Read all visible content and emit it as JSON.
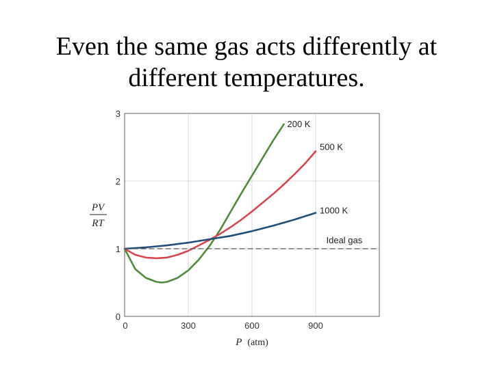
{
  "slide": {
    "title_line1": "Even the same gas acts differently at",
    "title_line2": "different temperatures."
  },
  "chart_data": {
    "type": "line",
    "xlabel_symbol": "P",
    "xlabel_unit": "(atm)",
    "ylabel_top": "PV",
    "ylabel_bottom": "RT",
    "xlim": [
      0,
      1200
    ],
    "ylim": [
      0,
      3
    ],
    "xticks": [
      "0",
      "300",
      "600",
      "900"
    ],
    "yticks": [
      "0",
      "1",
      "2",
      "3"
    ],
    "grid": true,
    "series": [
      {
        "name": "200 K",
        "color": "#4f8a3a",
        "x": [
          0,
          50,
          100,
          150,
          175,
          200,
          250,
          300,
          350,
          400,
          450,
          500,
          550,
          600,
          650,
          700,
          750
        ],
        "y": [
          1.0,
          0.7,
          0.57,
          0.51,
          0.5,
          0.51,
          0.57,
          0.68,
          0.84,
          1.04,
          1.28,
          1.55,
          1.82,
          2.08,
          2.34,
          2.6,
          2.84
        ]
      },
      {
        "name": "500 K",
        "color": "#d9454f",
        "x": [
          0,
          50,
          100,
          150,
          200,
          250,
          300,
          350,
          400,
          450,
          500,
          550,
          600,
          650,
          700,
          750,
          800,
          850,
          900
        ],
        "y": [
          1.0,
          0.91,
          0.87,
          0.86,
          0.87,
          0.91,
          0.97,
          1.05,
          1.13,
          1.22,
          1.32,
          1.43,
          1.55,
          1.68,
          1.81,
          1.95,
          2.1,
          2.26,
          2.44
        ]
      },
      {
        "name": "1000 K",
        "color": "#1f4e79",
        "x": [
          0,
          100,
          200,
          300,
          400,
          500,
          600,
          700,
          800,
          900
        ],
        "y": [
          1.0,
          1.02,
          1.05,
          1.09,
          1.14,
          1.19,
          1.26,
          1.34,
          1.43,
          1.53
        ]
      },
      {
        "name": "Ideal gas",
        "color": "#555555",
        "dashed": true,
        "x": [
          0,
          1200
        ],
        "y": [
          1.0,
          1.0
        ]
      }
    ]
  }
}
